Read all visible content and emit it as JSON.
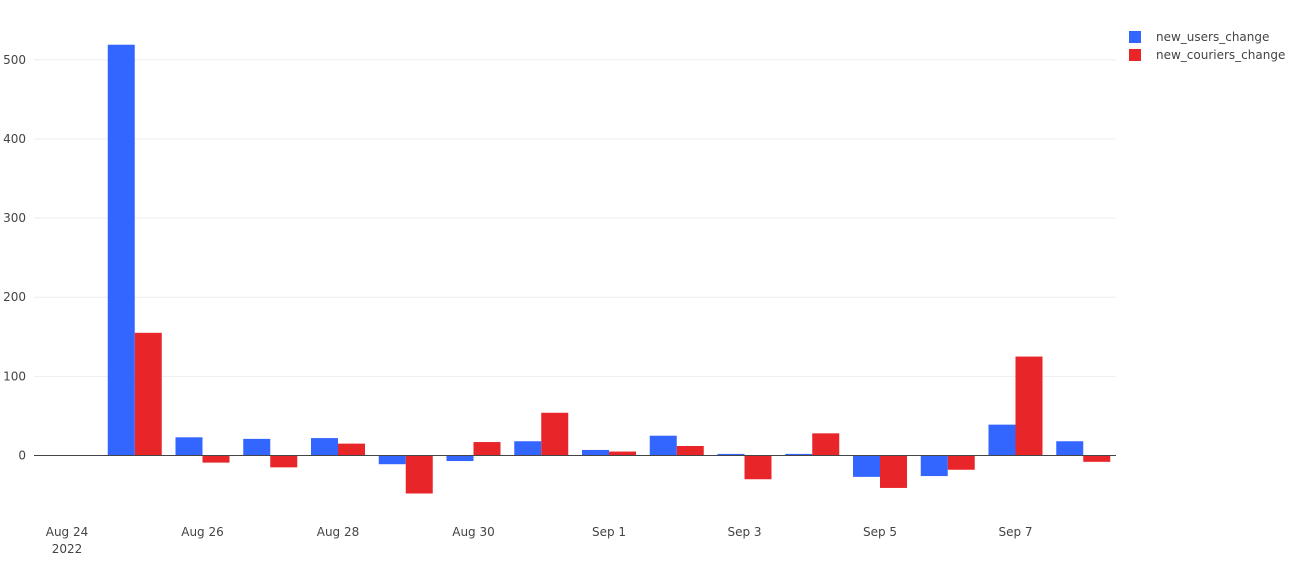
{
  "chart_data": {
    "type": "bar",
    "title": "",
    "xlabel": "",
    "ylabel": "",
    "categories": [
      "Aug 25",
      "Aug 26",
      "Aug 27",
      "Aug 28",
      "Aug 29",
      "Aug 30",
      "Aug 31",
      "Sep 1",
      "Sep 2",
      "Sep 3",
      "Sep 4",
      "Sep 5",
      "Sep 6",
      "Sep 7",
      "Sep 8"
    ],
    "x_tick_labels": [
      {
        "date_index": -1,
        "line1": "Aug 24",
        "line2": "2022"
      },
      {
        "date_index": 1,
        "line1": "Aug 26",
        "line2": ""
      },
      {
        "date_index": 3,
        "line1": "Aug 28",
        "line2": ""
      },
      {
        "date_index": 5,
        "line1": "Aug 30",
        "line2": ""
      },
      {
        "date_index": 7,
        "line1": "Sep 1",
        "line2": ""
      },
      {
        "date_index": 9,
        "line1": "Sep 3",
        "line2": ""
      },
      {
        "date_index": 11,
        "line1": "Sep 5",
        "line2": ""
      },
      {
        "date_index": 13,
        "line1": "Sep 7",
        "line2": ""
      }
    ],
    "y_ticks": [
      0,
      100,
      200,
      300,
      400,
      500
    ],
    "ylim": [
      -65,
      545
    ],
    "series": [
      {
        "name": "new_users_change",
        "color": "#3366ff",
        "values": [
          519,
          23,
          21,
          22,
          -11,
          -7,
          18,
          7,
          25,
          2,
          2,
          -27,
          -26,
          39,
          18
        ]
      },
      {
        "name": "new_couriers_change",
        "color": "#e8262a",
        "values": [
          155,
          -9,
          -15,
          15,
          -48,
          17,
          54,
          5,
          12,
          -30,
          28,
          -41,
          -18,
          125,
          -8
        ]
      }
    ],
    "legend_position": "top-right",
    "grid": true
  }
}
